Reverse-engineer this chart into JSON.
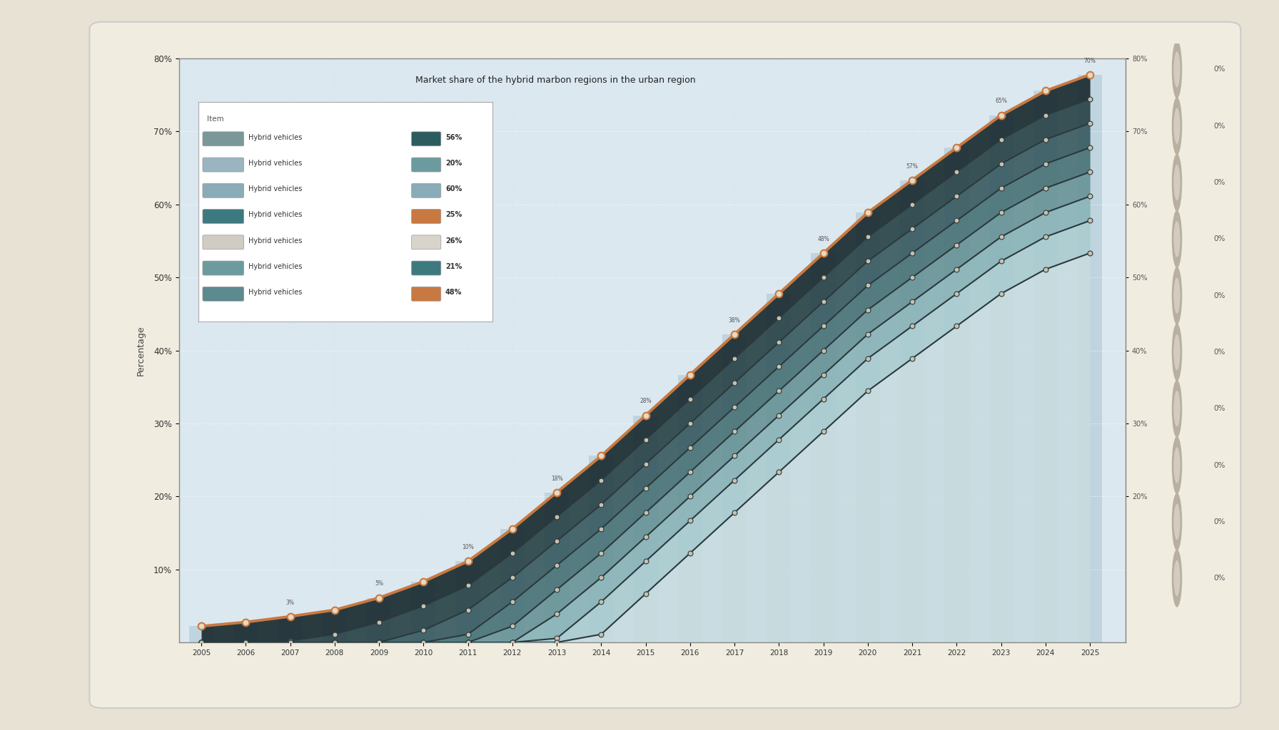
{
  "title": "Market share of the hybrid marbon regions in the urban region",
  "background_color": "#e8e2d4",
  "card_color": "#f0ece0",
  "plot_bg_color": "#dce8f0",
  "plot_bg_dark": "#c8d8e4",
  "years": [
    2005,
    2006,
    2007,
    2008,
    2009,
    2010,
    2011,
    2012,
    2013,
    2014,
    2015,
    2016,
    2017,
    2018,
    2019,
    2020,
    2021,
    2022,
    2023,
    2024,
    2025
  ],
  "ytick_vals": [
    80,
    70,
    60,
    50,
    40,
    30,
    20,
    10
  ],
  "ytick_labels": [
    "80%",
    "70%",
    "60%",
    "50%",
    "40%",
    "30%",
    "20%",
    "10%"
  ],
  "inner_ytick_vals": [
    20,
    30,
    40,
    50,
    60,
    70,
    80
  ],
  "base_curve": [
    2.0,
    2.5,
    3.2,
    4.0,
    5.5,
    7.5,
    10.0,
    14.0,
    18.5,
    23.0,
    28.0,
    33.0,
    38.0,
    43.0,
    48.0,
    53.0,
    57.0,
    61.0,
    65.0,
    68.0,
    70.0
  ],
  "band_offsets": [
    0,
    3,
    6,
    9,
    12,
    15,
    18,
    22
  ],
  "band_fill_colors": [
    "#1a2c30",
    "#2a4448",
    "#3a5c62",
    "#4a7478",
    "#6a9498",
    "#8ab4b8",
    "#aaccd0",
    "#c8dce0"
  ],
  "top_line_color": "#c87941",
  "top_line_marker_color": "#e8d8c0",
  "inner_line_color": "#2a3a3c",
  "inner_marker_color": "#c8c0b0",
  "bar_color": "#8ab0c0",
  "bar_alpha": 0.35,
  "legend_items": [
    {
      "name": "Hybrid vehicles",
      "col_left": "#7a9898",
      "col_right": "#2a5c60",
      "pct": "56%"
    },
    {
      "name": "Hybrid vehicles",
      "col_left": "#9ab5c0",
      "col_right": "#6b9b9e",
      "pct": "20%"
    },
    {
      "name": "Hybrid vehicles",
      "col_left": "#8aacb8",
      "col_right": "#8aacb8",
      "pct": "60%"
    },
    {
      "name": "Hybrid vehicles",
      "col_left": "#3d7a80",
      "col_right": "#c87941",
      "pct": "25%"
    },
    {
      "name": "Hybrid vehicles",
      "col_left": "#d0ccc4",
      "col_right": "#d8d4cc",
      "pct": "26%"
    },
    {
      "name": "Hybrid vehicles",
      "col_left": "#6b9b9e",
      "col_right": "#3d7a80",
      "pct": "21%"
    },
    {
      "name": "Hybrid vehicles",
      "col_left": "#5c8a8e",
      "col_right": "#c87941",
      "pct": "48%"
    }
  ],
  "right_icons_pcts": [
    "0%",
    "0%",
    "0%",
    "0%",
    "0%",
    "0%",
    "0%",
    "0%",
    "0%",
    "0%"
  ],
  "ylim": [
    0,
    72
  ],
  "xlim": [
    2004.5,
    2025.8
  ]
}
